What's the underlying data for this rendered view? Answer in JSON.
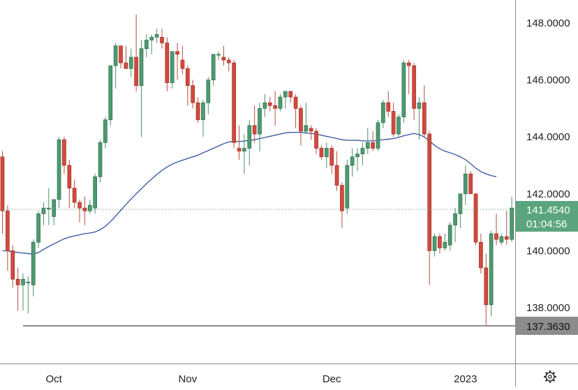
{
  "chart_data": {
    "type": "candlestick",
    "ylim": [
      136.4,
      148.8
    ],
    "y_ticks": [
      {
        "value": 148,
        "label": "148.0000"
      },
      {
        "value": 146,
        "label": "146.0000"
      },
      {
        "value": 144,
        "label": "144.0000"
      },
      {
        "value": 142,
        "label": "142.0000"
      },
      {
        "value": 140,
        "label": "140.0000"
      },
      {
        "value": 138,
        "label": "138.0000"
      }
    ],
    "x_ticks": [
      {
        "index": 10,
        "label": "Oct"
      },
      {
        "index": 36,
        "label": "Nov"
      },
      {
        "index": 64,
        "label": "Dec"
      },
      {
        "index": 90,
        "label": "2023"
      }
    ],
    "current_price": {
      "value": 141.454,
      "label": "141.4540",
      "countdown": "01:04:56"
    },
    "support_line": {
      "value": 137.363,
      "label": "137.3630",
      "start_index": 4
    },
    "candles": [
      [
        143.3,
        143.5,
        140.6,
        141.4
      ],
      [
        141.4,
        141.6,
        139.3,
        140.0
      ],
      [
        140.0,
        140.2,
        138.7,
        139.0
      ],
      [
        139.0,
        139.4,
        137.9,
        138.8
      ],
      [
        138.8,
        139.2,
        137.9,
        139.0
      ],
      [
        138.9,
        139.1,
        137.8,
        138.9
      ],
      [
        138.8,
        140.4,
        138.4,
        140.3
      ],
      [
        140.3,
        141.4,
        140.1,
        141.3
      ],
      [
        141.3,
        141.7,
        140.9,
        141.5
      ],
      [
        141.5,
        142.2,
        140.9,
        141.5
      ],
      [
        141.2,
        141.8,
        140.9,
        141.8
      ],
      [
        141.8,
        144.0,
        141.5,
        143.9
      ],
      [
        143.9,
        144.0,
        142.7,
        143.0
      ],
      [
        143.0,
        143.2,
        141.5,
        142.2
      ],
      [
        142.2,
        142.5,
        141.5,
        141.7
      ],
      [
        141.7,
        141.8,
        141.0,
        141.5
      ],
      [
        141.5,
        141.9,
        140.9,
        141.4
      ],
      [
        141.4,
        141.8,
        141.3,
        141.6
      ],
      [
        141.5,
        142.7,
        141.3,
        142.6
      ],
      [
        142.6,
        143.9,
        142.4,
        143.8
      ],
      [
        143.8,
        144.7,
        143.6,
        144.6
      ],
      [
        144.6,
        146.5,
        144.4,
        146.5
      ],
      [
        146.5,
        147.3,
        145.7,
        147.2
      ],
      [
        147.2,
        147.2,
        146.4,
        146.6
      ],
      [
        146.6,
        147.2,
        146.4,
        146.4
      ],
      [
        146.4,
        147.1,
        146.1,
        146.8
      ],
      [
        146.8,
        148.3,
        145.6,
        145.8
      ],
      [
        145.8,
        147.4,
        144.0,
        147.1
      ],
      [
        147.1,
        147.6,
        146.8,
        147.4
      ],
      [
        147.4,
        147.6,
        146.9,
        147.5
      ],
      [
        147.5,
        147.8,
        147.3,
        147.6
      ],
      [
        147.5,
        147.8,
        147.1,
        147.3
      ],
      [
        147.3,
        147.5,
        145.6,
        145.9
      ],
      [
        145.9,
        147.0,
        145.7,
        147.0
      ],
      [
        147.0,
        147.3,
        146.0,
        146.9
      ],
      [
        146.7,
        147.2,
        146.2,
        146.4
      ],
      [
        146.4,
        146.5,
        145.1,
        145.8
      ],
      [
        145.8,
        146.0,
        145.0,
        145.2
      ],
      [
        145.2,
        145.4,
        144.5,
        144.6
      ],
      [
        144.6,
        145.3,
        144.0,
        145.2
      ],
      [
        145.2,
        146.1,
        144.8,
        146.0
      ],
      [
        146.0,
        146.9,
        145.8,
        146.9
      ],
      [
        146.9,
        147.0,
        146.7,
        146.9
      ],
      [
        146.8,
        147.2,
        146.5,
        146.7
      ],
      [
        146.7,
        146.8,
        146.3,
        146.6
      ],
      [
        146.6,
        146.7,
        143.6,
        143.8
      ],
      [
        143.6,
        144.4,
        143.2,
        143.5
      ],
      [
        143.5,
        144.1,
        142.7,
        143.6
      ],
      [
        143.6,
        144.6,
        143.0,
        144.4
      ],
      [
        144.4,
        145.1,
        143.8,
        144.1
      ],
      [
        144.1,
        145.2,
        143.5,
        145.0
      ],
      [
        145.0,
        145.5,
        144.7,
        145.2
      ],
      [
        145.2,
        145.4,
        144.9,
        145.1
      ],
      [
        145.1,
        145.6,
        144.4,
        145.0
      ],
      [
        145.0,
        145.5,
        144.9,
        145.4
      ],
      [
        145.4,
        145.6,
        145.0,
        145.6
      ],
      [
        145.6,
        145.6,
        145.2,
        145.4
      ],
      [
        145.4,
        145.5,
        144.3,
        145.0
      ],
      [
        145.0,
        145.1,
        143.7,
        144.2
      ],
      [
        144.2,
        145.2,
        144.1,
        144.4
      ],
      [
        144.3,
        144.4,
        143.9,
        144.2
      ],
      [
        144.2,
        144.3,
        143.4,
        143.6
      ],
      [
        143.6,
        143.7,
        143.2,
        143.3
      ],
      [
        143.3,
        143.8,
        142.9,
        143.6
      ],
      [
        143.6,
        143.7,
        142.7,
        143.0
      ],
      [
        143.0,
        143.5,
        142.1,
        142.3
      ],
      [
        142.3,
        142.4,
        140.8,
        141.4
      ],
      [
        141.5,
        143.2,
        141.3,
        143.0
      ],
      [
        143.0,
        143.6,
        142.6,
        143.3
      ],
      [
        143.3,
        143.6,
        142.8,
        143.4
      ],
      [
        143.4,
        143.8,
        143.0,
        143.6
      ],
      [
        143.6,
        144.3,
        143.4,
        143.8
      ],
      [
        143.8,
        144.2,
        143.5,
        143.6
      ],
      [
        143.6,
        144.6,
        143.5,
        144.5
      ],
      [
        144.5,
        145.3,
        144.3,
        145.2
      ],
      [
        145.2,
        145.6,
        144.7,
        144.9
      ],
      [
        144.9,
        145.2,
        144.0,
        144.1
      ],
      [
        144.1,
        144.8,
        144.0,
        144.7
      ],
      [
        144.7,
        146.7,
        144.5,
        146.6
      ],
      [
        146.6,
        146.7,
        145.5,
        146.5
      ],
      [
        146.5,
        146.6,
        144.6,
        145.0
      ],
      [
        145.0,
        145.4,
        143.9,
        145.2
      ],
      [
        145.2,
        145.8,
        144.0,
        144.1
      ],
      [
        144.1,
        144.2,
        138.8,
        140.0
      ],
      [
        140.0,
        140.6,
        139.8,
        140.5
      ],
      [
        140.5,
        140.6,
        139.9,
        140.1
      ],
      [
        140.1,
        140.6,
        140.0,
        140.3
      ],
      [
        140.2,
        141.0,
        140.0,
        140.9
      ],
      [
        140.9,
        141.5,
        140.3,
        141.3
      ],
      [
        141.3,
        142.0,
        140.8,
        142.0
      ],
      [
        142.0,
        143.0,
        141.6,
        142.7
      ],
      [
        142.7,
        142.8,
        142.0,
        142.0
      ],
      [
        142.0,
        142.0,
        140.2,
        140.3
      ],
      [
        140.3,
        140.6,
        139.2,
        139.4
      ],
      [
        139.4,
        139.9,
        137.4,
        138.1
      ],
      [
        138.1,
        140.7,
        137.7,
        140.6
      ],
      [
        140.6,
        141.3,
        140.2,
        140.4
      ],
      [
        140.3,
        140.6,
        140.2,
        140.5
      ],
      [
        140.5,
        141.4,
        140.2,
        140.4
      ],
      [
        140.4,
        141.9,
        140.3,
        141.5
      ]
    ],
    "moving_average": [
      140.0,
      140.0,
      139.96,
      139.94,
      139.92,
      139.9,
      139.88,
      139.94,
      140.05,
      140.15,
      140.24,
      140.33,
      140.42,
      140.48,
      140.52,
      140.56,
      140.6,
      140.62,
      140.66,
      140.74,
      140.86,
      141.02,
      141.22,
      141.42,
      141.62,
      141.82,
      142.0,
      142.18,
      142.36,
      142.52,
      142.68,
      142.82,
      142.94,
      143.04,
      143.12,
      143.18,
      143.24,
      143.3,
      143.36,
      143.44,
      143.52,
      143.6,
      143.68,
      143.76,
      143.82,
      143.84,
      143.84,
      143.85,
      143.88,
      143.9,
      143.94,
      143.98,
      144.02,
      144.06,
      144.1,
      144.14,
      144.16,
      144.16,
      144.16,
      144.14,
      144.12,
      144.1,
      144.06,
      144.02,
      143.98,
      143.94,
      143.9,
      143.88,
      143.88,
      143.88,
      143.86,
      143.86,
      143.86,
      143.88,
      143.9,
      143.92,
      143.94,
      143.98,
      144.04,
      144.08,
      144.12,
      144.08,
      144.0,
      143.86,
      143.7,
      143.58,
      143.5,
      143.44,
      143.38,
      143.3,
      143.2,
      143.06,
      142.9,
      142.78,
      142.7,
      142.64,
      142.6
    ]
  }
}
